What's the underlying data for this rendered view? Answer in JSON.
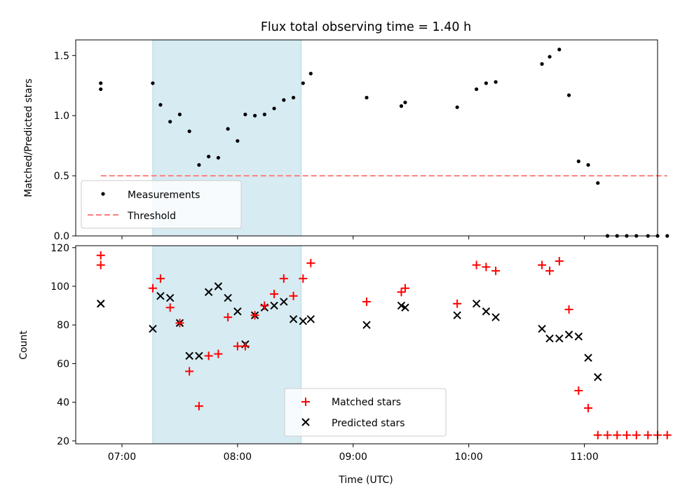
{
  "chart_data": [
    {
      "type": "scatter",
      "title": "Flux total observing time = 1.40 h",
      "xlabel": "",
      "ylabel": "Matched/Predicted stars",
      "xlim": [
        "06:36",
        "11:38"
      ],
      "ylim": [
        0,
        1.63
      ],
      "yticks": [
        0.0,
        0.5,
        1.0,
        1.5
      ],
      "ytick_labels": [
        "0.0",
        "0.5",
        "1.0",
        "1.5"
      ],
      "shaded_interval": {
        "start": "07:16",
        "end": "08:33",
        "color": "#add8e6"
      },
      "legend": {
        "position": "lower-left",
        "entries": [
          "Measurements",
          "Threshold"
        ]
      },
      "series": [
        {
          "name": "Measurements",
          "marker": "dot",
          "color": "#000000",
          "points": [
            [
              "06:49",
              1.27
            ],
            [
              "06:49",
              1.22
            ],
            [
              "07:16",
              1.27
            ],
            [
              "07:20",
              1.09
            ],
            [
              "07:25",
              0.95
            ],
            [
              "07:30",
              1.01
            ],
            [
              "07:35",
              0.87
            ],
            [
              "07:40",
              0.59
            ],
            [
              "07:45",
              0.66
            ],
            [
              "07:50",
              0.65
            ],
            [
              "07:55",
              0.89
            ],
            [
              "08:00",
              0.79
            ],
            [
              "08:04",
              1.01
            ],
            [
              "08:09",
              1.0
            ],
            [
              "08:14",
              1.01
            ],
            [
              "08:19",
              1.06
            ],
            [
              "08:24",
              1.13
            ],
            [
              "08:29",
              1.15
            ],
            [
              "08:34",
              1.27
            ],
            [
              "08:38",
              1.35
            ],
            [
              "09:07",
              1.15
            ],
            [
              "09:25",
              1.08
            ],
            [
              "09:27",
              1.11
            ],
            [
              "09:54",
              1.07
            ],
            [
              "10:04",
              1.22
            ],
            [
              "10:09",
              1.27
            ],
            [
              "10:14",
              1.28
            ],
            [
              "10:38",
              1.43
            ],
            [
              "10:42",
              1.49
            ],
            [
              "10:47",
              1.55
            ],
            [
              "10:52",
              1.17
            ],
            [
              "10:57",
              0.62
            ],
            [
              "11:02",
              0.59
            ],
            [
              "11:07",
              0.44
            ],
            [
              "11:12",
              0.0
            ],
            [
              "11:17",
              0.0
            ],
            [
              "11:22",
              0.0
            ],
            [
              "11:27",
              0.0
            ],
            [
              "11:33",
              0.0
            ],
            [
              "11:38",
              0.0
            ],
            [
              "11:43",
              0.0
            ]
          ]
        },
        {
          "name": "Threshold",
          "style": "dashed",
          "color": "#ff7f7f",
          "points": [
            [
              "06:49",
              0.5
            ],
            [
              "11:43",
              0.5
            ]
          ]
        }
      ]
    },
    {
      "type": "scatter",
      "title": "",
      "xlabel": "Time (UTC)",
      "ylabel": "Count",
      "xlim": [
        "06:36",
        "11:38"
      ],
      "ylim": [
        18.5,
        121
      ],
      "yticks": [
        20,
        40,
        60,
        80,
        100,
        120
      ],
      "ytick_labels": [
        "20",
        "40",
        "60",
        "80",
        "100",
        "120"
      ],
      "xticks": [
        "07:00",
        "08:00",
        "09:00",
        "10:00",
        "11:00"
      ],
      "shaded_interval": {
        "start": "07:16",
        "end": "08:33",
        "color": "#add8e6"
      },
      "legend": {
        "position": "lower-center",
        "entries": [
          "Matched stars",
          "Predicted stars"
        ]
      },
      "series": [
        {
          "name": "Matched stars",
          "marker": "plus",
          "color": "#ff0000",
          "points": [
            [
              "06:49",
              116
            ],
            [
              "06:49",
              111
            ],
            [
              "07:16",
              99
            ],
            [
              "07:20",
              104
            ],
            [
              "07:25",
              89
            ],
            [
              "07:30",
              81
            ],
            [
              "07:35",
              56
            ],
            [
              "07:40",
              38
            ],
            [
              "07:45",
              64
            ],
            [
              "07:50",
              65
            ],
            [
              "07:55",
              84
            ],
            [
              "08:00",
              69
            ],
            [
              "08:04",
              69
            ],
            [
              "08:09",
              85
            ],
            [
              "08:14",
              90
            ],
            [
              "08:19",
              96
            ],
            [
              "08:24",
              104
            ],
            [
              "08:29",
              95
            ],
            [
              "08:34",
              104
            ],
            [
              "08:38",
              112
            ],
            [
              "09:07",
              92
            ],
            [
              "09:25",
              97
            ],
            [
              "09:27",
              99
            ],
            [
              "09:54",
              91
            ],
            [
              "10:04",
              111
            ],
            [
              "10:09",
              110
            ],
            [
              "10:14",
              108
            ],
            [
              "10:38",
              111
            ],
            [
              "10:42",
              108
            ],
            [
              "10:47",
              113
            ],
            [
              "10:52",
              88
            ],
            [
              "10:57",
              46
            ],
            [
              "11:02",
              37
            ],
            [
              "11:07",
              23
            ],
            [
              "11:12",
              23
            ],
            [
              "11:17",
              23
            ],
            [
              "11:22",
              23
            ],
            [
              "11:27",
              23
            ],
            [
              "11:33",
              23
            ],
            [
              "11:38",
              23
            ],
            [
              "11:43",
              23
            ]
          ]
        },
        {
          "name": "Predicted stars",
          "marker": "x",
          "color": "#000000",
          "points": [
            [
              "06:49",
              91
            ],
            [
              "06:49",
              91
            ],
            [
              "07:16",
              78
            ],
            [
              "07:20",
              95
            ],
            [
              "07:25",
              94
            ],
            [
              "07:30",
              81
            ],
            [
              "07:35",
              64
            ],
            [
              "07:40",
              64
            ],
            [
              "07:45",
              97
            ],
            [
              "07:50",
              100
            ],
            [
              "07:55",
              94
            ],
            [
              "08:00",
              87
            ],
            [
              "08:04",
              70
            ],
            [
              "08:09",
              85
            ],
            [
              "08:14",
              89
            ],
            [
              "08:19",
              90
            ],
            [
              "08:24",
              92
            ],
            [
              "08:29",
              83
            ],
            [
              "08:34",
              82
            ],
            [
              "08:38",
              83
            ],
            [
              "09:07",
              80
            ],
            [
              "09:25",
              90
            ],
            [
              "09:27",
              89
            ],
            [
              "09:54",
              85
            ],
            [
              "10:04",
              91
            ],
            [
              "10:09",
              87
            ],
            [
              "10:14",
              84
            ],
            [
              "10:38",
              78
            ],
            [
              "10:42",
              73
            ],
            [
              "10:47",
              73
            ],
            [
              "10:52",
              75
            ],
            [
              "10:57",
              74
            ],
            [
              "11:02",
              63
            ],
            [
              "11:07",
              53
            ]
          ]
        }
      ]
    }
  ]
}
